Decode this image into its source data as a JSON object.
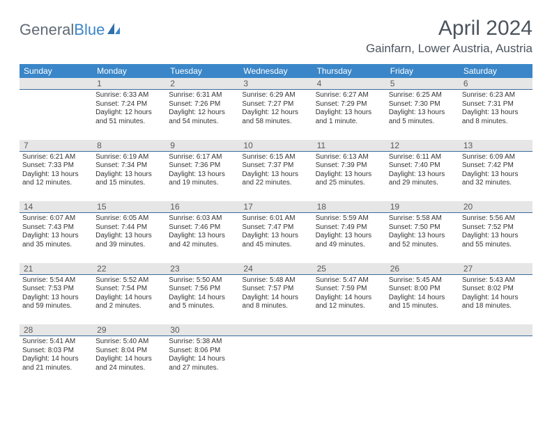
{
  "brand": {
    "name_part1": "General",
    "name_part2": "Blue"
  },
  "title": "April 2024",
  "location": "Gainfarn, Lower Austria, Austria",
  "dow": [
    "Sunday",
    "Monday",
    "Tuesday",
    "Wednesday",
    "Thursday",
    "Friday",
    "Saturday"
  ],
  "colors": {
    "header_bg": "#3a86c8",
    "header_text": "#ffffff",
    "daynum_bg": "#e6e6e6",
    "daynum_border": "#3a6a9a",
    "body_text": "#333333",
    "title_text": "#4b545e"
  },
  "weeks": [
    {
      "nums": [
        "",
        "1",
        "2",
        "3",
        "4",
        "5",
        "6"
      ],
      "cells": [
        null,
        {
          "sunrise": "Sunrise: 6:33 AM",
          "sunset": "Sunset: 7:24 PM",
          "day": "Daylight: 12 hours and 51 minutes."
        },
        {
          "sunrise": "Sunrise: 6:31 AM",
          "sunset": "Sunset: 7:26 PM",
          "day": "Daylight: 12 hours and 54 minutes."
        },
        {
          "sunrise": "Sunrise: 6:29 AM",
          "sunset": "Sunset: 7:27 PM",
          "day": "Daylight: 12 hours and 58 minutes."
        },
        {
          "sunrise": "Sunrise: 6:27 AM",
          "sunset": "Sunset: 7:29 PM",
          "day": "Daylight: 13 hours and 1 minute."
        },
        {
          "sunrise": "Sunrise: 6:25 AM",
          "sunset": "Sunset: 7:30 PM",
          "day": "Daylight: 13 hours and 5 minutes."
        },
        {
          "sunrise": "Sunrise: 6:23 AM",
          "sunset": "Sunset: 7:31 PM",
          "day": "Daylight: 13 hours and 8 minutes."
        }
      ]
    },
    {
      "nums": [
        "7",
        "8",
        "9",
        "10",
        "11",
        "12",
        "13"
      ],
      "cells": [
        {
          "sunrise": "Sunrise: 6:21 AM",
          "sunset": "Sunset: 7:33 PM",
          "day": "Daylight: 13 hours and 12 minutes."
        },
        {
          "sunrise": "Sunrise: 6:19 AM",
          "sunset": "Sunset: 7:34 PM",
          "day": "Daylight: 13 hours and 15 minutes."
        },
        {
          "sunrise": "Sunrise: 6:17 AM",
          "sunset": "Sunset: 7:36 PM",
          "day": "Daylight: 13 hours and 19 minutes."
        },
        {
          "sunrise": "Sunrise: 6:15 AM",
          "sunset": "Sunset: 7:37 PM",
          "day": "Daylight: 13 hours and 22 minutes."
        },
        {
          "sunrise": "Sunrise: 6:13 AM",
          "sunset": "Sunset: 7:39 PM",
          "day": "Daylight: 13 hours and 25 minutes."
        },
        {
          "sunrise": "Sunrise: 6:11 AM",
          "sunset": "Sunset: 7:40 PM",
          "day": "Daylight: 13 hours and 29 minutes."
        },
        {
          "sunrise": "Sunrise: 6:09 AM",
          "sunset": "Sunset: 7:42 PM",
          "day": "Daylight: 13 hours and 32 minutes."
        }
      ]
    },
    {
      "nums": [
        "14",
        "15",
        "16",
        "17",
        "18",
        "19",
        "20"
      ],
      "cells": [
        {
          "sunrise": "Sunrise: 6:07 AM",
          "sunset": "Sunset: 7:43 PM",
          "day": "Daylight: 13 hours and 35 minutes."
        },
        {
          "sunrise": "Sunrise: 6:05 AM",
          "sunset": "Sunset: 7:44 PM",
          "day": "Daylight: 13 hours and 39 minutes."
        },
        {
          "sunrise": "Sunrise: 6:03 AM",
          "sunset": "Sunset: 7:46 PM",
          "day": "Daylight: 13 hours and 42 minutes."
        },
        {
          "sunrise": "Sunrise: 6:01 AM",
          "sunset": "Sunset: 7:47 PM",
          "day": "Daylight: 13 hours and 45 minutes."
        },
        {
          "sunrise": "Sunrise: 5:59 AM",
          "sunset": "Sunset: 7:49 PM",
          "day": "Daylight: 13 hours and 49 minutes."
        },
        {
          "sunrise": "Sunrise: 5:58 AM",
          "sunset": "Sunset: 7:50 PM",
          "day": "Daylight: 13 hours and 52 minutes."
        },
        {
          "sunrise": "Sunrise: 5:56 AM",
          "sunset": "Sunset: 7:52 PM",
          "day": "Daylight: 13 hours and 55 minutes."
        }
      ]
    },
    {
      "nums": [
        "21",
        "22",
        "23",
        "24",
        "25",
        "26",
        "27"
      ],
      "cells": [
        {
          "sunrise": "Sunrise: 5:54 AM",
          "sunset": "Sunset: 7:53 PM",
          "day": "Daylight: 13 hours and 59 minutes."
        },
        {
          "sunrise": "Sunrise: 5:52 AM",
          "sunset": "Sunset: 7:54 PM",
          "day": "Daylight: 14 hours and 2 minutes."
        },
        {
          "sunrise": "Sunrise: 5:50 AM",
          "sunset": "Sunset: 7:56 PM",
          "day": "Daylight: 14 hours and 5 minutes."
        },
        {
          "sunrise": "Sunrise: 5:48 AM",
          "sunset": "Sunset: 7:57 PM",
          "day": "Daylight: 14 hours and 8 minutes."
        },
        {
          "sunrise": "Sunrise: 5:47 AM",
          "sunset": "Sunset: 7:59 PM",
          "day": "Daylight: 14 hours and 12 minutes."
        },
        {
          "sunrise": "Sunrise: 5:45 AM",
          "sunset": "Sunset: 8:00 PM",
          "day": "Daylight: 14 hours and 15 minutes."
        },
        {
          "sunrise": "Sunrise: 5:43 AM",
          "sunset": "Sunset: 8:02 PM",
          "day": "Daylight: 14 hours and 18 minutes."
        }
      ]
    },
    {
      "nums": [
        "28",
        "29",
        "30",
        "",
        "",
        "",
        ""
      ],
      "cells": [
        {
          "sunrise": "Sunrise: 5:41 AM",
          "sunset": "Sunset: 8:03 PM",
          "day": "Daylight: 14 hours and 21 minutes."
        },
        {
          "sunrise": "Sunrise: 5:40 AM",
          "sunset": "Sunset: 8:04 PM",
          "day": "Daylight: 14 hours and 24 minutes."
        },
        {
          "sunrise": "Sunrise: 5:38 AM",
          "sunset": "Sunset: 8:06 PM",
          "day": "Daylight: 14 hours and 27 minutes."
        },
        null,
        null,
        null,
        null
      ]
    }
  ]
}
